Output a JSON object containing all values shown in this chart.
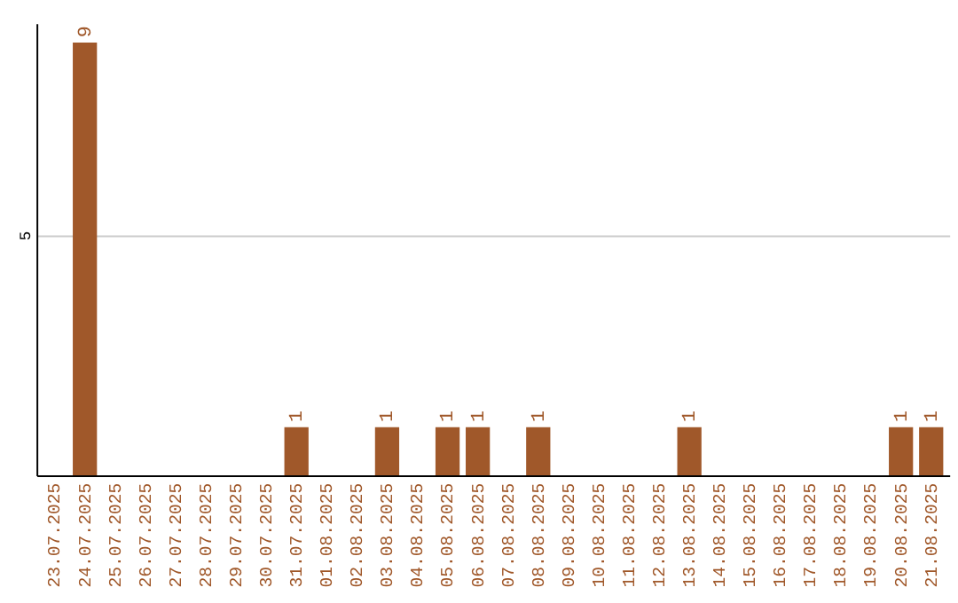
{
  "chart_data": {
    "type": "bar",
    "categories": [
      "23.07.2025",
      "24.07.2025",
      "25.07.2025",
      "26.07.2025",
      "27.07.2025",
      "28.07.2025",
      "29.07.2025",
      "30.07.2025",
      "31.07.2025",
      "01.08.2025",
      "02.08.2025",
      "03.08.2025",
      "04.08.2025",
      "05.08.2025",
      "06.08.2025",
      "07.08.2025",
      "08.08.2025",
      "09.08.2025",
      "10.08.2025",
      "11.08.2025",
      "12.08.2025",
      "13.08.2025",
      "14.08.2025",
      "15.08.2025",
      "16.08.2025",
      "17.08.2025",
      "18.08.2025",
      "19.08.2025",
      "20.08.2025",
      "21.08.2025"
    ],
    "values": [
      0,
      9,
      0,
      0,
      0,
      0,
      0,
      0,
      1,
      0,
      0,
      1,
      0,
      1,
      1,
      0,
      1,
      0,
      0,
      0,
      0,
      1,
      0,
      0,
      0,
      0,
      0,
      0,
      1,
      1
    ],
    "value_labels": [
      null,
      "9",
      null,
      null,
      null,
      null,
      null,
      null,
      "1",
      null,
      null,
      "1",
      null,
      "1",
      "1",
      null,
      "1",
      null,
      null,
      null,
      null,
      "1",
      null,
      null,
      null,
      null,
      null,
      null,
      "1",
      "1"
    ],
    "color": "#a0582a",
    "ylim": [
      0,
      9.4
    ],
    "yticks": [
      5
    ],
    "grid": "y"
  }
}
